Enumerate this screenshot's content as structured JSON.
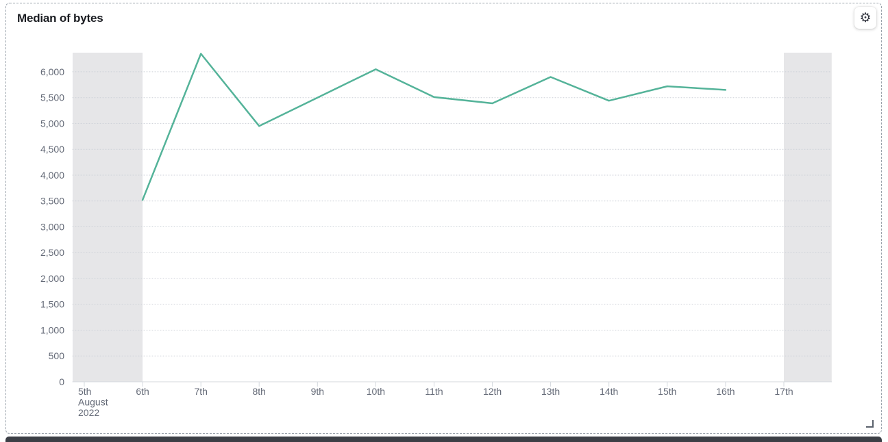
{
  "panel": {
    "title": "Median of bytes",
    "settings_icon": "⚙"
  },
  "chart_data": {
    "type": "line",
    "title": "Median of bytes",
    "legend": "hidden",
    "x_axis": {
      "tick_labels": [
        "5th",
        "6th",
        "7th",
        "8th",
        "9th",
        "10th",
        "11th",
        "12th",
        "13th",
        "14th",
        "15th",
        "16th",
        "17th"
      ],
      "first_tick_extra_lines": [
        "August",
        "2022"
      ]
    },
    "y_axis": {
      "range": [
        0,
        6370
      ],
      "ticks": [
        {
          "value": 0,
          "label": "0"
        },
        {
          "value": 500,
          "label": "500"
        },
        {
          "value": 1000,
          "label": "1,000"
        },
        {
          "value": 1500,
          "label": "1,500"
        },
        {
          "value": 2000,
          "label": "2,000"
        },
        {
          "value": 2500,
          "label": "2,500"
        },
        {
          "value": 3000,
          "label": "3,000"
        },
        {
          "value": 3500,
          "label": "3,500"
        },
        {
          "value": 4000,
          "label": "4,000"
        },
        {
          "value": 4500,
          "label": "4,500"
        },
        {
          "value": 5000,
          "label": "5,000"
        },
        {
          "value": 5500,
          "label": "5,500"
        },
        {
          "value": 6000,
          "label": "6,000"
        }
      ]
    },
    "series": [
      {
        "name": "Median of bytes",
        "color": "#54b399",
        "points": [
          {
            "x": "6th",
            "y": 3520
          },
          {
            "x": "7th",
            "y": 6350
          },
          {
            "x": "8th",
            "y": 4950
          },
          {
            "x": "9th",
            "y": 5500
          },
          {
            "x": "10th",
            "y": 6050
          },
          {
            "x": "11th",
            "y": 5510
          },
          {
            "x": "12th",
            "y": 5390
          },
          {
            "x": "13th",
            "y": 5900
          },
          {
            "x": "14th",
            "y": 5440
          },
          {
            "x": "15th",
            "y": 5720
          },
          {
            "x": "16th",
            "y": 5650
          }
        ]
      }
    ],
    "partial_data_bands": [
      {
        "note": "incomplete bucket at range start",
        "start_index": -0.2,
        "end_index": 1
      },
      {
        "note": "incomplete bucket at range end",
        "start_index": 12,
        "end_index": 12.82
      }
    ],
    "grid": {
      "horizontal": "dotted",
      "vertical": false
    },
    "colors": {
      "line": "#54b399",
      "band": "#e6e6e8",
      "gridline": "#cdd1d8",
      "axis_line": "#d4d8de",
      "tick_label": "#646a77"
    }
  }
}
